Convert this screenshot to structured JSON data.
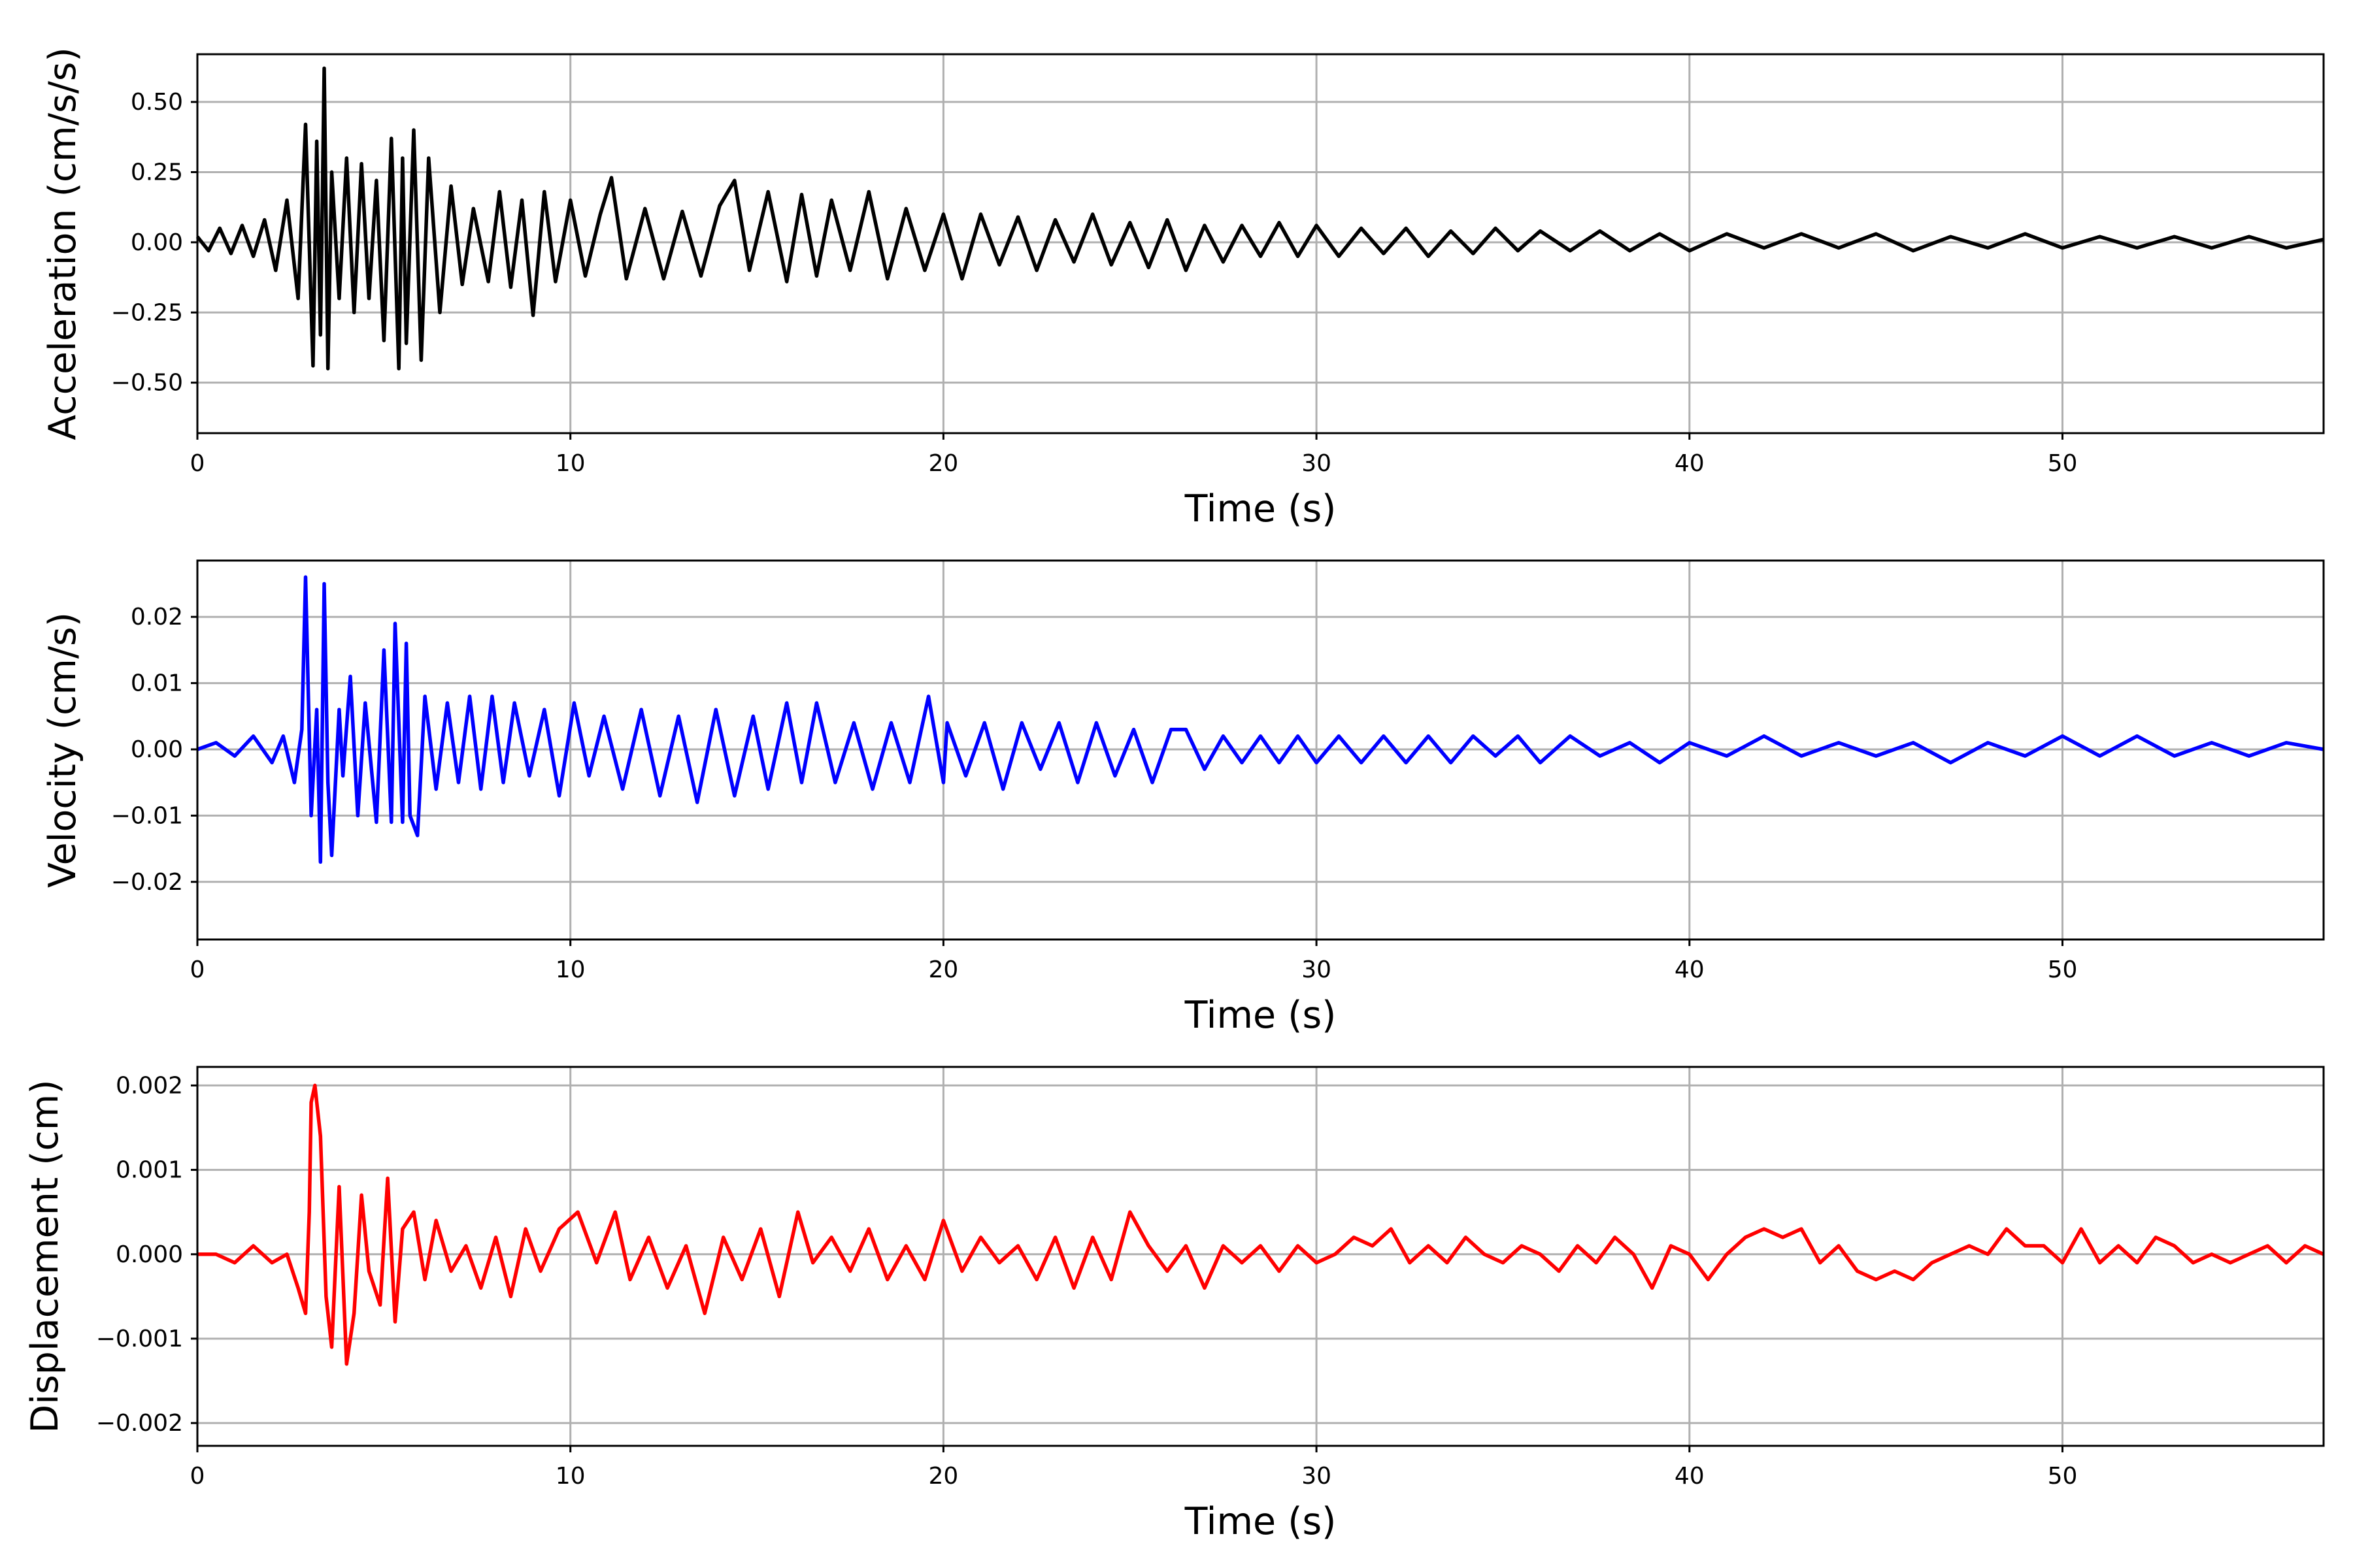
{
  "chart_data": [
    {
      "type": "line",
      "title": "",
      "xlabel": "Time (s)",
      "ylabel": "Acceleration (cm/s/s)",
      "xlim": [
        0,
        57
      ],
      "ylim": [
        -0.68,
        0.67
      ],
      "x_ticks": [
        0,
        10,
        20,
        30,
        40,
        50
      ],
      "x_tick_labels": [
        "0",
        "10",
        "20",
        "30",
        "40",
        "50"
      ],
      "y_ticks": [
        0.5,
        0.25,
        0.0,
        -0.25,
        -0.5
      ],
      "y_tick_labels": [
        "0.50",
        "0.25",
        "0.00",
        "−0.25",
        "−0.50"
      ],
      "grid": true,
      "color": "#000000",
      "series": [
        {
          "x": [
            0,
            0.3,
            0.6,
            0.9,
            1.2,
            1.5,
            1.8,
            2.1,
            2.4,
            2.7,
            2.9,
            3.1,
            3.2,
            3.3,
            3.4,
            3.5,
            3.6,
            3.8,
            4.0,
            4.2,
            4.4,
            4.6,
            4.8,
            5.0,
            5.2,
            5.4,
            5.5,
            5.6,
            5.8,
            6.0,
            6.2,
            6.5,
            6.8,
            7.1,
            7.4,
            7.8,
            8.1,
            8.4,
            8.7,
            9.0,
            9.3,
            9.6,
            10.0,
            10.4,
            10.8,
            11.1,
            11.5,
            12.0,
            12.5,
            13.0,
            13.5,
            14.0,
            14.4,
            14.8,
            15.3,
            15.8,
            16.2,
            16.6,
            17.0,
            17.5,
            18.0,
            18.5,
            19.0,
            19.5,
            20.0,
            20.5,
            21.0,
            21.5,
            22.0,
            22.5,
            23.0,
            23.5,
            24.0,
            24.5,
            25.0,
            25.5,
            26.0,
            26.5,
            27.0,
            27.5,
            28.0,
            28.5,
            29.0,
            29.5,
            30.0,
            30.6,
            31.2,
            31.8,
            32.4,
            33.0,
            33.6,
            34.2,
            34.8,
            35.4,
            36.0,
            36.8,
            37.6,
            38.4,
            39.2,
            40.0,
            41.0,
            42.0,
            43.0,
            44.0,
            45.0,
            46.0,
            47.0,
            48.0,
            49.0,
            50.0,
            51.0,
            52.0,
            53.0,
            54.0,
            55.0,
            56.0,
            57.0
          ],
          "y": [
            0.02,
            -0.03,
            0.05,
            -0.04,
            0.06,
            -0.05,
            0.08,
            -0.1,
            0.15,
            -0.2,
            0.42,
            -0.44,
            0.36,
            -0.33,
            0.62,
            -0.45,
            0.25,
            -0.2,
            0.3,
            -0.25,
            0.28,
            -0.2,
            0.22,
            -0.35,
            0.37,
            -0.45,
            0.3,
            -0.36,
            0.4,
            -0.42,
            0.3,
            -0.25,
            0.2,
            -0.15,
            0.12,
            -0.14,
            0.18,
            -0.16,
            0.15,
            -0.26,
            0.18,
            -0.14,
            0.15,
            -0.12,
            0.1,
            0.23,
            -0.13,
            0.12,
            -0.13,
            0.11,
            -0.12,
            0.13,
            0.22,
            -0.1,
            0.18,
            -0.14,
            0.17,
            -0.12,
            0.15,
            -0.1,
            0.18,
            -0.13,
            0.12,
            -0.1,
            0.1,
            -0.13,
            0.1,
            -0.08,
            0.09,
            -0.1,
            0.08,
            -0.07,
            0.1,
            -0.08,
            0.07,
            -0.09,
            0.08,
            -0.1,
            0.06,
            -0.07,
            0.06,
            -0.05,
            0.07,
            -0.05,
            0.06,
            -0.05,
            0.05,
            -0.04,
            0.05,
            -0.05,
            0.04,
            -0.04,
            0.05,
            -0.03,
            0.04,
            -0.03,
            0.04,
            -0.03,
            0.03,
            -0.03,
            0.03,
            -0.02,
            0.03,
            -0.02,
            0.03,
            -0.03,
            0.02,
            -0.02,
            0.03,
            -0.02,
            0.02,
            -0.02,
            0.02,
            -0.02,
            0.02,
            -0.02,
            0.01
          ]
        }
      ]
    },
    {
      "type": "line",
      "title": "",
      "xlabel": "Time (s)",
      "ylabel": "Velocity (cm/s)",
      "xlim": [
        0,
        57
      ],
      "ylim": [
        -0.0287,
        0.0285
      ],
      "x_ticks": [
        0,
        10,
        20,
        30,
        40,
        50
      ],
      "x_tick_labels": [
        "0",
        "10",
        "20",
        "30",
        "40",
        "50"
      ],
      "y_ticks": [
        0.02,
        0.01,
        0.0,
        -0.01,
        -0.02
      ],
      "y_tick_labels": [
        "0.02",
        "0.01",
        "0.00",
        "−0.01",
        "−0.02"
      ],
      "grid": true,
      "color": "#0000ff",
      "series": [
        {
          "x": [
            0,
            0.5,
            1.0,
            1.5,
            2.0,
            2.3,
            2.6,
            2.8,
            2.9,
            3.05,
            3.2,
            3.3,
            3.4,
            3.5,
            3.6,
            3.8,
            3.9,
            4.1,
            4.3,
            4.5,
            4.8,
            5.0,
            5.2,
            5.3,
            5.5,
            5.6,
            5.7,
            5.9,
            6.1,
            6.4,
            6.7,
            7.0,
            7.3,
            7.6,
            7.9,
            8.2,
            8.5,
            8.9,
            9.3,
            9.7,
            10.1,
            10.5,
            10.9,
            11.4,
            11.9,
            12.4,
            12.9,
            13.4,
            13.9,
            14.4,
            14.9,
            15.3,
            15.8,
            16.2,
            16.6,
            17.1,
            17.6,
            18.1,
            18.6,
            19.1,
            19.6,
            20.0,
            20.1,
            20.6,
            21.1,
            21.6,
            22.1,
            22.6,
            23.1,
            23.6,
            24.1,
            24.6,
            25.1,
            25.6,
            26.1,
            26.5,
            27.0,
            27.5,
            28.0,
            28.5,
            29.0,
            29.5,
            30.0,
            30.6,
            31.2,
            31.8,
            32.4,
            33.0,
            33.6,
            34.2,
            34.8,
            35.4,
            36.0,
            36.8,
            37.6,
            38.4,
            39.2,
            40.0,
            41.0,
            42.0,
            43.0,
            44.0,
            45.0,
            46.0,
            47.0,
            48.0,
            49.0,
            50.0,
            51.0,
            52.0,
            53.0,
            54.0,
            55.0,
            56.0,
            57.0
          ],
          "y": [
            0.0,
            0.001,
            -0.001,
            0.002,
            -0.002,
            0.002,
            -0.005,
            0.003,
            0.026,
            -0.01,
            0.006,
            -0.017,
            0.025,
            -0.005,
            -0.016,
            0.006,
            -0.004,
            0.011,
            -0.01,
            0.007,
            -0.011,
            0.015,
            -0.011,
            0.019,
            -0.011,
            0.016,
            -0.01,
            -0.013,
            0.008,
            -0.006,
            0.007,
            -0.005,
            0.008,
            -0.006,
            0.008,
            -0.005,
            0.007,
            -0.004,
            0.006,
            -0.007,
            0.007,
            -0.004,
            0.005,
            -0.006,
            0.006,
            -0.007,
            0.005,
            -0.008,
            0.006,
            -0.007,
            0.005,
            -0.006,
            0.007,
            -0.005,
            0.007,
            -0.005,
            0.004,
            -0.006,
            0.004,
            -0.005,
            0.008,
            -0.005,
            0.004,
            -0.004,
            0.004,
            -0.006,
            0.004,
            -0.003,
            0.004,
            -0.005,
            0.004,
            -0.004,
            0.003,
            -0.005,
            0.003,
            0.003,
            -0.003,
            0.002,
            -0.002,
            0.002,
            -0.002,
            0.002,
            -0.002,
            0.002,
            -0.002,
            0.002,
            -0.002,
            0.002,
            -0.002,
            0.002,
            -0.001,
            0.002,
            -0.002,
            0.002,
            -0.001,
            0.001,
            -0.002,
            0.001,
            -0.001,
            0.002,
            -0.001,
            0.001,
            -0.001,
            0.001,
            -0.002,
            0.001,
            -0.001,
            0.002,
            -0.001,
            0.002,
            -0.001,
            0.001,
            -0.001,
            0.001,
            0.0
          ]
        }
      ]
    },
    {
      "type": "line",
      "title": "",
      "xlabel": "Time (s)",
      "ylabel": "Displacement (cm)",
      "xlim": [
        0,
        57
      ],
      "ylim": [
        -0.00227,
        0.00222
      ],
      "x_ticks": [
        0,
        10,
        20,
        30,
        40,
        50
      ],
      "x_tick_labels": [
        "0",
        "10",
        "20",
        "30",
        "40",
        "50"
      ],
      "y_ticks": [
        0.002,
        0.001,
        0.0,
        -0.001,
        -0.002
      ],
      "y_tick_labels": [
        "0.002",
        "0.001",
        "0.000",
        "−0.001",
        "−0.002"
      ],
      "grid": true,
      "color": "#ff0000",
      "series": [
        {
          "x": [
            0,
            0.5,
            1.0,
            1.5,
            2.0,
            2.4,
            2.7,
            2.9,
            3.0,
            3.05,
            3.15,
            3.3,
            3.45,
            3.6,
            3.8,
            4.0,
            4.2,
            4.4,
            4.6,
            4.9,
            5.1,
            5.3,
            5.5,
            5.8,
            6.1,
            6.4,
            6.8,
            7.2,
            7.6,
            8.0,
            8.4,
            8.8,
            9.2,
            9.7,
            10.2,
            10.7,
            11.2,
            11.6,
            12.1,
            12.6,
            13.1,
            13.6,
            14.1,
            14.6,
            15.1,
            15.6,
            16.1,
            16.5,
            17.0,
            17.5,
            18.0,
            18.5,
            19.0,
            19.5,
            20.0,
            20.5,
            21.0,
            21.5,
            22.0,
            22.5,
            23.0,
            23.5,
            24.0,
            24.5,
            25.0,
            25.5,
            26.0,
            26.5,
            27.0,
            27.5,
            28.0,
            28.5,
            29.0,
            29.5,
            30.0,
            30.5,
            31.0,
            31.5,
            32.0,
            32.5,
            33.0,
            33.5,
            34.0,
            34.5,
            35.0,
            35.5,
            36.0,
            36.5,
            37.0,
            37.5,
            38.0,
            38.5,
            39.0,
            39.5,
            40.0,
            40.5,
            41.0,
            41.5,
            42.0,
            42.5,
            43.0,
            43.5,
            44.0,
            44.5,
            45.0,
            45.5,
            46.0,
            46.5,
            47.0,
            47.5,
            48.0,
            48.5,
            49.0,
            49.5,
            50.0,
            50.5,
            51.0,
            51.5,
            52.0,
            52.5,
            53.0,
            53.5,
            54.0,
            54.5,
            55.0,
            55.5,
            56.0,
            56.5,
            57.0
          ],
          "y": [
            0.0,
            0.0,
            -0.0001,
            0.0001,
            -0.0001,
            0.0,
            -0.0004,
            -0.0007,
            0.0005,
            0.0018,
            0.002,
            0.0014,
            -0.0005,
            -0.0011,
            0.0008,
            -0.0013,
            -0.0007,
            0.0007,
            -0.0002,
            -0.0006,
            0.0009,
            -0.0008,
            0.0003,
            0.0005,
            -0.0003,
            0.0004,
            -0.0002,
            0.0001,
            -0.0004,
            0.0002,
            -0.0005,
            0.0003,
            -0.0002,
            0.0003,
            0.0005,
            -0.0001,
            0.0005,
            -0.0003,
            0.0002,
            -0.0004,
            0.0001,
            -0.0007,
            0.0002,
            -0.0003,
            0.0003,
            -0.0005,
            0.0005,
            -0.0001,
            0.0002,
            -0.0002,
            0.0003,
            -0.0003,
            0.0001,
            -0.0003,
            0.0004,
            -0.0002,
            0.0002,
            -0.0001,
            0.0001,
            -0.0003,
            0.0002,
            -0.0004,
            0.0002,
            -0.0003,
            0.0005,
            0.0001,
            -0.0002,
            0.0001,
            -0.0004,
            0.0001,
            -0.0001,
            0.0001,
            -0.0002,
            0.0001,
            -0.0001,
            0.0,
            0.0002,
            0.0001,
            0.0003,
            -0.0001,
            0.0001,
            -0.0001,
            0.0002,
            0.0,
            -0.0001,
            0.0001,
            0.0,
            -0.0002,
            0.0001,
            -0.0001,
            0.0002,
            0.0,
            -0.0004,
            0.0001,
            0.0,
            -0.0003,
            0.0,
            0.0002,
            0.0003,
            0.0002,
            0.0003,
            -0.0001,
            0.0001,
            -0.0002,
            -0.0003,
            -0.0002,
            -0.0003,
            -0.0001,
            0.0,
            0.0001,
            0.0,
            0.0003,
            0.0001,
            0.0001,
            -0.0001,
            0.0003,
            -0.0001,
            0.0001,
            -0.0001,
            0.0002,
            0.0001,
            -0.0001,
            0.0,
            -0.0001,
            0.0,
            0.0001,
            -0.0001,
            0.0001,
            0.0
          ]
        }
      ]
    }
  ]
}
